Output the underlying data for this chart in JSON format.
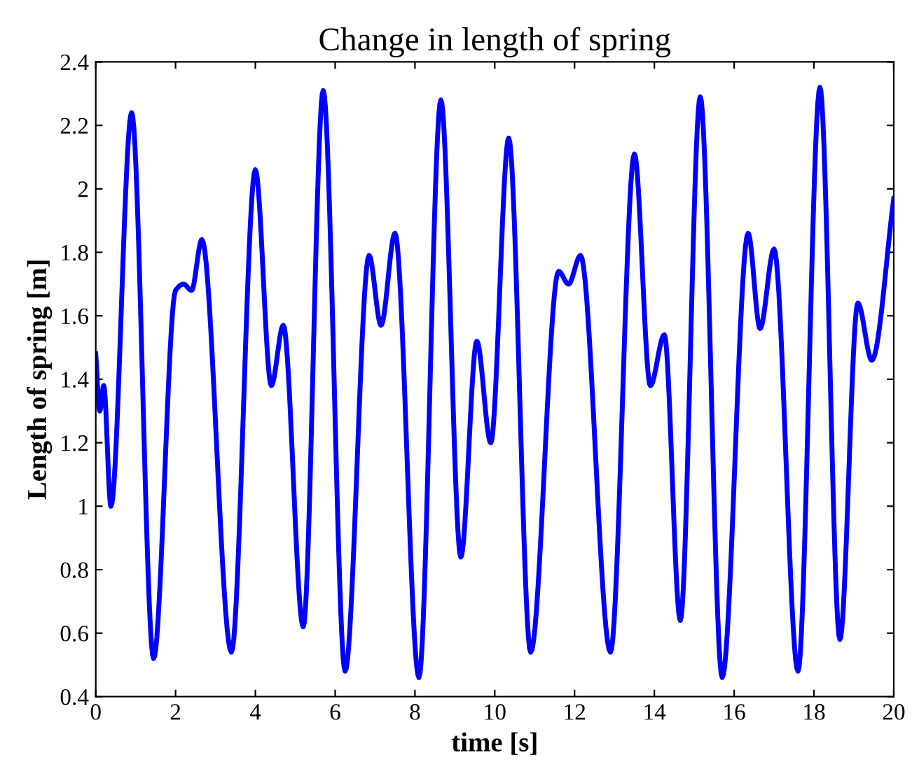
{
  "chart_data": {
    "type": "line",
    "title": "Change in length of spring",
    "xlabel": "time [s]",
    "ylabel": "Length of spring [m]",
    "x": [
      0,
      0.1,
      0.2,
      0.38,
      0.9,
      1.45,
      2.0,
      2.2,
      2.4,
      2.66,
      3.4,
      4.0,
      4.4,
      4.7,
      5.2,
      5.7,
      6.25,
      6.85,
      7.15,
      7.5,
      8.1,
      8.65,
      9.15,
      9.55,
      9.9,
      10.35,
      10.9,
      11.6,
      11.85,
      12.15,
      12.9,
      13.5,
      13.9,
      14.25,
      14.65,
      15.15,
      15.7,
      16.35,
      16.65,
      17.0,
      17.6,
      18.15,
      18.65,
      19.1,
      19.45,
      20
    ],
    "series": [
      {
        "color": "#0000ff",
        "values": [
          1.48,
          1.3,
          1.38,
          1.0,
          2.24,
          0.52,
          1.68,
          1.7,
          1.68,
          1.84,
          0.54,
          2.06,
          1.38,
          1.57,
          0.62,
          2.31,
          0.48,
          1.79,
          1.57,
          1.86,
          0.46,
          2.28,
          0.84,
          1.52,
          1.2,
          2.16,
          0.54,
          1.74,
          1.7,
          1.79,
          0.54,
          2.11,
          1.38,
          1.54,
          0.64,
          2.29,
          0.46,
          1.86,
          1.56,
          1.81,
          0.48,
          2.32,
          0.58,
          1.64,
          1.46,
          1.97
        ]
      }
    ],
    "xlim": [
      0,
      20
    ],
    "ylim": [
      0.4,
      2.4
    ],
    "xticks": [
      0,
      2,
      4,
      6,
      8,
      10,
      12,
      14,
      16,
      18,
      20
    ],
    "yticks": [
      0.4,
      0.6,
      0.8,
      1,
      1.2,
      1.4,
      1.6,
      1.8,
      2,
      2.2,
      2.4
    ],
    "grid": false,
    "legend": false,
    "marker": "none",
    "line_style": "solid"
  }
}
